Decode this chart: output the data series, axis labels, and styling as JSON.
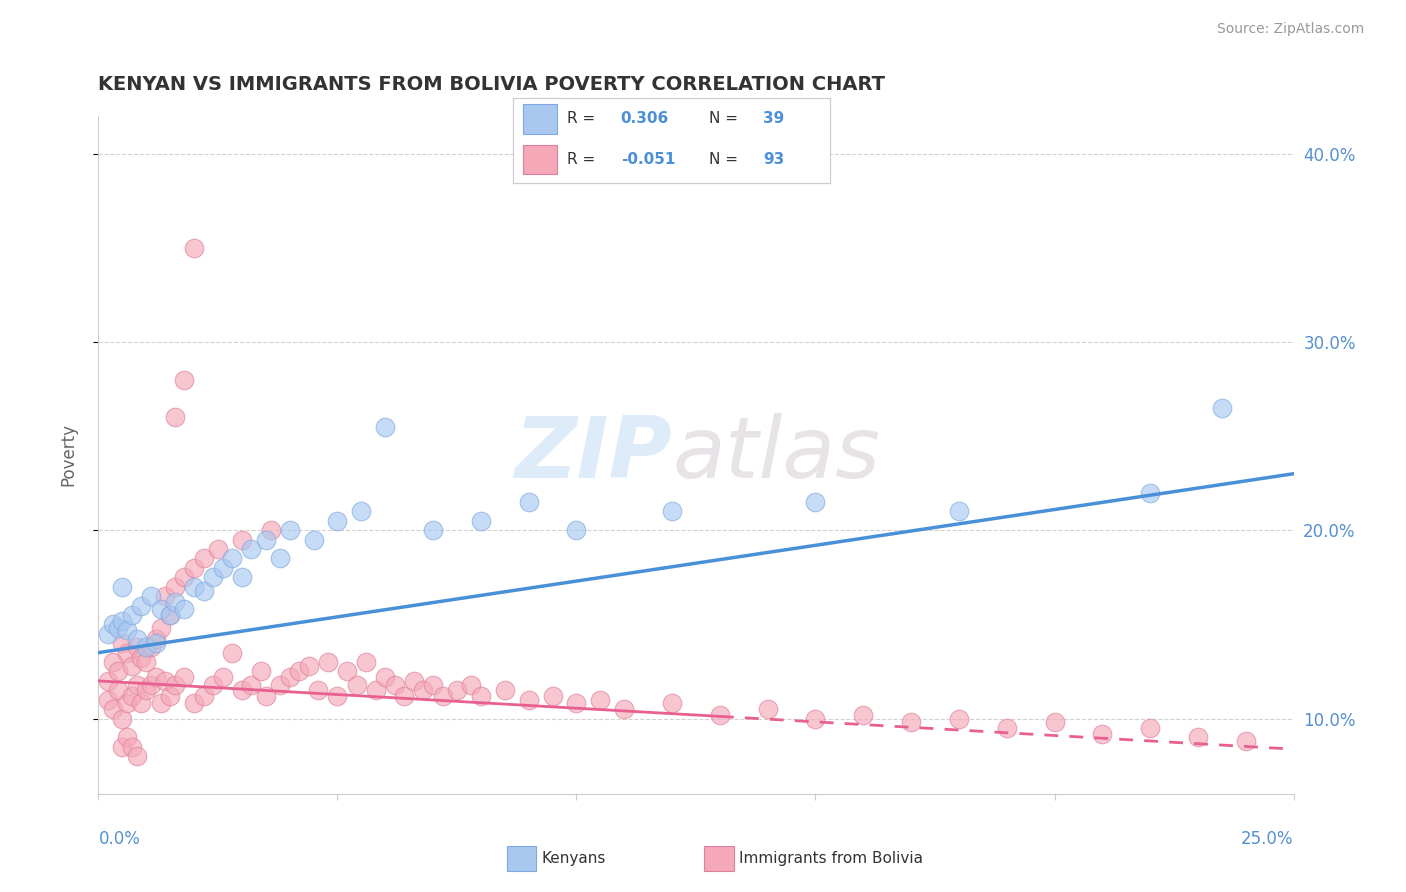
{
  "title": "KENYAN VS IMMIGRANTS FROM BOLIVIA POVERTY CORRELATION CHART",
  "source": "Source: ZipAtlas.com",
  "ylabel": "Poverty",
  "xlim": [
    0.0,
    0.25
  ],
  "ylim": [
    0.06,
    0.42
  ],
  "yticks": [
    0.1,
    0.2,
    0.3,
    0.4
  ],
  "ytick_labels": [
    "10.0%",
    "20.0%",
    "30.0%",
    "40.0%"
  ],
  "kenyan_color": "#a8c8f0",
  "bolivia_color": "#f4a8b8",
  "kenyan_line_color": "#4a90d9",
  "bolivia_line_color": "#e86090",
  "watermark_zip": "ZIP",
  "watermark_atlas": "atlas",
  "R_kenyan": "0.306",
  "N_kenyan": "39",
  "R_bolivia": "-0.051",
  "N_bolivia": "93",
  "kenyan_x": [
    0.002,
    0.003,
    0.004,
    0.005,
    0.006,
    0.007,
    0.008,
    0.009,
    0.01,
    0.011,
    0.012,
    0.013,
    0.015,
    0.016,
    0.018,
    0.02,
    0.022,
    0.024,
    0.026,
    0.028,
    0.03,
    0.032,
    0.035,
    0.038,
    0.04,
    0.045,
    0.05,
    0.055,
    0.06,
    0.07,
    0.08,
    0.09,
    0.1,
    0.12,
    0.15,
    0.18,
    0.22,
    0.235,
    0.005
  ],
  "kenyan_y": [
    0.145,
    0.15,
    0.148,
    0.152,
    0.147,
    0.155,
    0.142,
    0.16,
    0.138,
    0.165,
    0.14,
    0.158,
    0.155,
    0.162,
    0.158,
    0.17,
    0.168,
    0.175,
    0.18,
    0.185,
    0.175,
    0.19,
    0.195,
    0.185,
    0.2,
    0.195,
    0.205,
    0.21,
    0.255,
    0.2,
    0.205,
    0.215,
    0.2,
    0.21,
    0.215,
    0.21,
    0.22,
    0.265,
    0.17
  ],
  "bolivia_x": [
    0.002,
    0.002,
    0.003,
    0.003,
    0.004,
    0.004,
    0.005,
    0.005,
    0.006,
    0.006,
    0.007,
    0.007,
    0.008,
    0.008,
    0.009,
    0.009,
    0.01,
    0.01,
    0.011,
    0.011,
    0.012,
    0.012,
    0.013,
    0.013,
    0.014,
    0.014,
    0.015,
    0.015,
    0.016,
    0.016,
    0.018,
    0.018,
    0.02,
    0.02,
    0.022,
    0.022,
    0.024,
    0.025,
    0.026,
    0.028,
    0.03,
    0.03,
    0.032,
    0.034,
    0.035,
    0.036,
    0.038,
    0.04,
    0.042,
    0.044,
    0.046,
    0.048,
    0.05,
    0.052,
    0.054,
    0.056,
    0.058,
    0.06,
    0.062,
    0.064,
    0.066,
    0.068,
    0.07,
    0.072,
    0.075,
    0.078,
    0.08,
    0.085,
    0.09,
    0.095,
    0.1,
    0.105,
    0.11,
    0.12,
    0.13,
    0.14,
    0.15,
    0.16,
    0.17,
    0.18,
    0.19,
    0.2,
    0.21,
    0.22,
    0.23,
    0.24,
    0.016,
    0.018,
    0.02,
    0.005,
    0.006,
    0.007,
    0.008
  ],
  "bolivia_y": [
    0.11,
    0.12,
    0.105,
    0.13,
    0.115,
    0.125,
    0.1,
    0.14,
    0.108,
    0.135,
    0.112,
    0.128,
    0.118,
    0.138,
    0.108,
    0.132,
    0.115,
    0.13,
    0.118,
    0.138,
    0.122,
    0.142,
    0.108,
    0.148,
    0.12,
    0.165,
    0.112,
    0.155,
    0.118,
    0.17,
    0.122,
    0.175,
    0.108,
    0.18,
    0.112,
    0.185,
    0.118,
    0.19,
    0.122,
    0.135,
    0.115,
    0.195,
    0.118,
    0.125,
    0.112,
    0.2,
    0.118,
    0.122,
    0.125,
    0.128,
    0.115,
    0.13,
    0.112,
    0.125,
    0.118,
    0.13,
    0.115,
    0.122,
    0.118,
    0.112,
    0.12,
    0.115,
    0.118,
    0.112,
    0.115,
    0.118,
    0.112,
    0.115,
    0.11,
    0.112,
    0.108,
    0.11,
    0.105,
    0.108,
    0.102,
    0.105,
    0.1,
    0.102,
    0.098,
    0.1,
    0.095,
    0.098,
    0.092,
    0.095,
    0.09,
    0.088,
    0.26,
    0.28,
    0.35,
    0.085,
    0.09,
    0.085,
    0.08
  ]
}
